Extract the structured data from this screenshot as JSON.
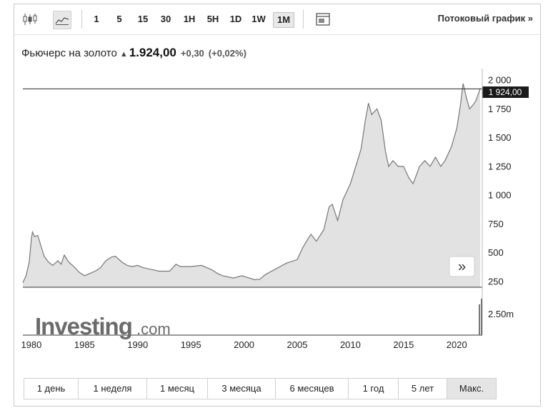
{
  "toolbar": {
    "intervals": [
      "1",
      "5",
      "15",
      "30",
      "1H",
      "5H",
      "1D",
      "1W",
      "1M"
    ],
    "selected_interval": "1M",
    "stream_label": "Потоковый график »",
    "icons": [
      "candlestick-chart-icon",
      "area-chart-icon",
      "layout-panel-icon"
    ]
  },
  "quote": {
    "name": "Фьючерс на золото",
    "arrow": "▲",
    "price": "1.924,00",
    "change": "+0,30",
    "change_pct": "(+0,02%)"
  },
  "price_label": "1 924,00",
  "nav_label": "»",
  "logo": {
    "main": "Investing",
    "suffix": ".com"
  },
  "volume_label": "2.50m",
  "ranges": [
    "1 день",
    "1 неделя",
    "1 месяц",
    "3 месяца",
    "6 месяцев",
    "1 год",
    "5 лет",
    "Макс."
  ],
  "selected_range": "Макс.",
  "colors": {
    "line": "#777777",
    "fill": "#e2e2e2",
    "price_tag": "#1a1a1a"
  },
  "chart_data": {
    "type": "area",
    "title": "Фьючерс на золото",
    "xlabel": "",
    "ylabel": "",
    "x_ticks": [
      1980,
      1985,
      1990,
      1995,
      2000,
      2005,
      2010,
      2015,
      2020
    ],
    "y_ticks": [
      250,
      500,
      750,
      1000,
      1250,
      1500,
      1750,
      2000
    ],
    "y_tick_labels": [
      "250",
      "500",
      "750",
      "1 000",
      "1 250",
      "1 500",
      "1 750",
      "2 000"
    ],
    "xlim": [
      1979.2,
      2022.2
    ],
    "ylim": [
      200,
      2100
    ],
    "current_value": 1924,
    "grid": false,
    "x": [
      1979.2,
      1979.5,
      1979.8,
      1980.0,
      1980.1,
      1980.3,
      1980.6,
      1980.9,
      1981.2,
      1981.6,
      1982.0,
      1982.5,
      1982.8,
      1983.1,
      1983.5,
      1984.0,
      1984.5,
      1985.0,
      1985.5,
      1986.0,
      1986.5,
      1987.0,
      1987.5,
      1987.9,
      1988.5,
      1989.0,
      1989.5,
      1990.0,
      1990.5,
      1991.0,
      1992.0,
      1993.0,
      1993.6,
      1994.0,
      1995.0,
      1996.0,
      1996.5,
      1997.0,
      1997.5,
      1998.0,
      1999.0,
      1999.8,
      2000.5,
      2001.0,
      2001.5,
      2002.0,
      2003.0,
      2004.0,
      2005.0,
      2005.5,
      2006.0,
      2006.3,
      2006.8,
      2007.5,
      2008.0,
      2008.3,
      2008.8,
      2009.3,
      2010.0,
      2010.5,
      2011.0,
      2011.4,
      2011.7,
      2012.0,
      2012.5,
      2012.9,
      2013.3,
      2013.6,
      2014.0,
      2014.5,
      2015.0,
      2015.5,
      2015.9,
      2016.5,
      2017.0,
      2017.5,
      2018.0,
      2018.5,
      2018.9,
      2019.5,
      2020.0,
      2020.3,
      2020.6,
      2020.9,
      2021.2,
      2021.5,
      2021.8,
      2022.2
    ],
    "values": [
      240,
      300,
      420,
      620,
      680,
      640,
      650,
      560,
      470,
      420,
      390,
      430,
      400,
      480,
      420,
      380,
      330,
      300,
      320,
      340,
      370,
      430,
      460,
      470,
      420,
      390,
      380,
      390,
      370,
      360,
      340,
      340,
      400,
      380,
      380,
      390,
      370,
      350,
      320,
      300,
      280,
      300,
      280,
      265,
      270,
      310,
      360,
      410,
      440,
      540,
      620,
      660,
      600,
      700,
      900,
      920,
      780,
      960,
      1100,
      1250,
      1400,
      1650,
      1800,
      1700,
      1750,
      1650,
      1380,
      1250,
      1300,
      1250,
      1250,
      1150,
      1100,
      1250,
      1300,
      1250,
      1330,
      1250,
      1300,
      1420,
      1580,
      1750,
      1970,
      1850,
      1750,
      1780,
      1820,
      1924
    ],
    "volume_ticks": [
      "2.50m"
    ]
  }
}
